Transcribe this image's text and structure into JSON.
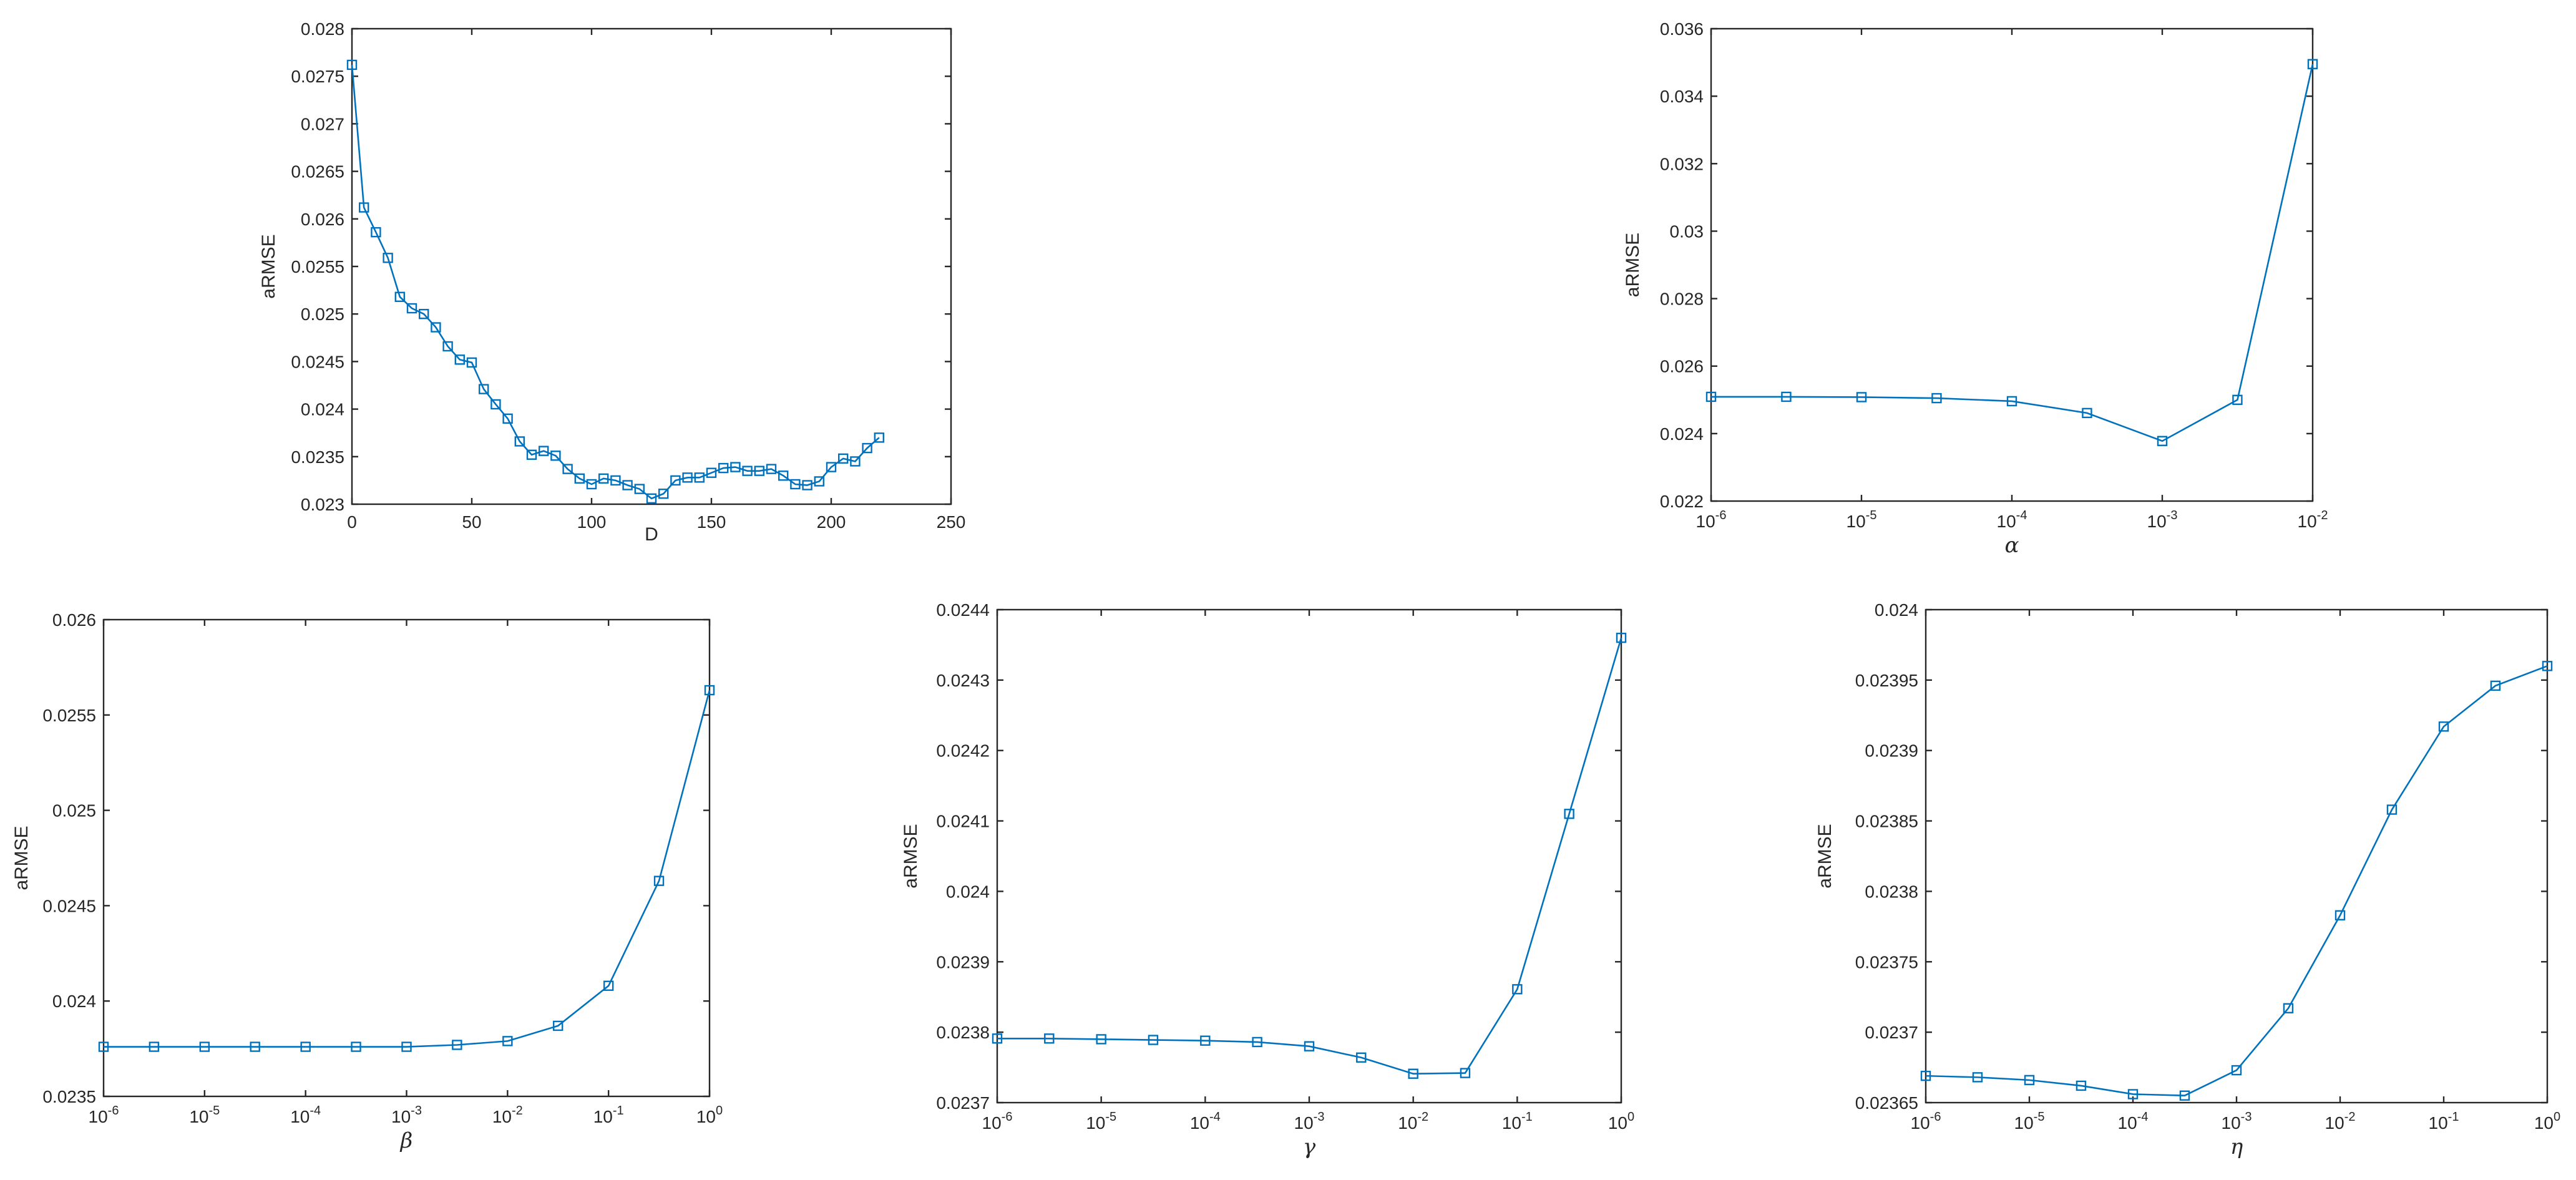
{
  "figure": {
    "line_color": "#0072BD",
    "axis_color": "#262626",
    "marker": "square"
  },
  "chart_data": [
    {
      "id": "d",
      "type": "line",
      "xscale": "linear",
      "xlabel": "D",
      "ylabel": "aRMSE",
      "xlim": [
        0,
        250
      ],
      "ylim": [
        0.023,
        0.028
      ],
      "xticks": [
        0,
        50,
        100,
        150,
        200,
        250
      ],
      "xtick_labels": [
        "0",
        "50",
        "100",
        "150",
        "200",
        "250"
      ],
      "yticks": [
        0.023,
        0.0235,
        0.024,
        0.0245,
        0.025,
        0.0255,
        0.026,
        0.0265,
        0.027,
        0.0275,
        0.028
      ],
      "ytick_labels": [
        "0.023",
        "0.0235",
        "0.024",
        "0.0245",
        "0.025",
        "0.0255",
        "0.026",
        "0.0265",
        "0.027",
        "0.0275",
        "0.028"
      ],
      "series": [
        {
          "x": [
            0,
            5,
            10,
            15,
            20,
            25,
            30,
            35,
            40,
            45,
            50,
            55,
            60,
            65,
            70,
            75,
            80,
            85,
            90,
            95,
            100,
            105,
            110,
            115,
            120,
            125,
            130,
            135,
            140,
            145,
            150,
            155,
            160,
            165,
            170,
            175,
            180,
            185,
            190,
            195,
            200,
            205,
            210,
            215,
            220
          ],
          "y": [
            0.02762,
            0.02612,
            0.02586,
            0.02559,
            0.02518,
            0.02506,
            0.025,
            0.02486,
            0.02466,
            0.02452,
            0.02449,
            0.02421,
            0.02405,
            0.0239,
            0.02366,
            0.02352,
            0.02356,
            0.02351,
            0.02337,
            0.02327,
            0.02321,
            0.02327,
            0.02325,
            0.0232,
            0.02316,
            0.02306,
            0.02311,
            0.02325,
            0.02328,
            0.02328,
            0.02333,
            0.02338,
            0.02339,
            0.02335,
            0.02335,
            0.02337,
            0.0233,
            0.02321,
            0.0232,
            0.02324,
            0.02339,
            0.02348,
            0.02345,
            0.02359,
            0.0237
          ]
        }
      ]
    },
    {
      "id": "alpha",
      "type": "line",
      "xscale": "log",
      "xlabel": "α",
      "ylabel": "aRMSE",
      "xlim": [
        -6,
        -2
      ],
      "ylim": [
        0.022,
        0.036
      ],
      "xticks": [
        -6,
        -5,
        -4,
        -3,
        -2
      ],
      "xtick_base": [
        "10",
        "10",
        "10",
        "10",
        "10"
      ],
      "xtick_exp": [
        "-6",
        "-5",
        "-4",
        "-3",
        "-2"
      ],
      "yticks": [
        0.022,
        0.024,
        0.026,
        0.028,
        0.03,
        0.032,
        0.034,
        0.036
      ],
      "ytick_labels": [
        "0.022",
        "0.024",
        "0.026",
        "0.028",
        "0.03",
        "0.032",
        "0.034",
        "0.036"
      ],
      "series": [
        {
          "x": [
            1e-06,
            3.16e-06,
            1e-05,
            3.16e-05,
            0.0001,
            0.000316,
            0.001,
            0.00316,
            0.01
          ],
          "y": [
            0.02509,
            0.02509,
            0.02508,
            0.02505,
            0.02496,
            0.02461,
            0.02378,
            0.025,
            0.03495
          ]
        }
      ]
    },
    {
      "id": "beta",
      "type": "line",
      "xscale": "log",
      "xlabel": "β",
      "ylabel": "aRMSE",
      "xlim": [
        -6,
        0
      ],
      "ylim": [
        0.0235,
        0.026
      ],
      "xticks": [
        -6,
        -5,
        -4,
        -3,
        -2,
        -1,
        0
      ],
      "xtick_base": [
        "10",
        "10",
        "10",
        "10",
        "10",
        "10",
        "10"
      ],
      "xtick_exp": [
        "-6",
        "-5",
        "-4",
        "-3",
        "-2",
        "-1",
        "0"
      ],
      "yticks": [
        0.0235,
        0.024,
        0.0245,
        0.025,
        0.0255,
        0.026
      ],
      "ytick_labels": [
        "0.0235",
        "0.024",
        "0.0245",
        "0.025",
        "0.0255",
        "0.026"
      ],
      "series": [
        {
          "x": [
            1e-06,
            3.16e-06,
            1e-05,
            3.16e-05,
            0.0001,
            0.000316,
            0.001,
            0.00316,
            0.01,
            0.0316,
            0.1,
            0.316,
            1
          ],
          "y": [
            0.02376,
            0.02376,
            0.02376,
            0.02376,
            0.02376,
            0.02376,
            0.02376,
            0.02377,
            0.02379,
            0.02387,
            0.02408,
            0.02463,
            0.02563
          ]
        }
      ]
    },
    {
      "id": "gamma",
      "type": "line",
      "xscale": "log",
      "xlabel": "γ",
      "ylabel": "aRMSE",
      "xlim": [
        -6,
        0
      ],
      "ylim": [
        0.0237,
        0.0244
      ],
      "xticks": [
        -6,
        -5,
        -4,
        -3,
        -2,
        -1,
        0
      ],
      "xtick_base": [
        "10",
        "10",
        "10",
        "10",
        "10",
        "10",
        "10"
      ],
      "xtick_exp": [
        "-6",
        "-5",
        "-4",
        "-3",
        "-2",
        "-1",
        "0"
      ],
      "yticks": [
        0.0237,
        0.0238,
        0.0239,
        0.024,
        0.0241,
        0.0242,
        0.0243,
        0.0244
      ],
      "ytick_labels": [
        "0.0237",
        "0.0238",
        "0.0239",
        "0.024",
        "0.0241",
        "0.0242",
        "0.0243",
        "0.0244"
      ],
      "series": [
        {
          "x": [
            1e-06,
            3.16e-06,
            1e-05,
            3.16e-05,
            0.0001,
            0.000316,
            0.001,
            0.00316,
            0.01,
            0.0316,
            0.1,
            0.316,
            1
          ],
          "y": [
            0.023791,
            0.023791,
            0.02379,
            0.023789,
            0.023788,
            0.023786,
            0.02378,
            0.023764,
            0.023741,
            0.023742,
            0.023861,
            0.02411,
            0.02436
          ]
        }
      ]
    },
    {
      "id": "eta",
      "type": "line",
      "xscale": "log",
      "xlabel": "η",
      "ylabel": "aRMSE",
      "xlim": [
        -6,
        0
      ],
      "ylim": [
        0.02365,
        0.024
      ],
      "xticks": [
        -6,
        -5,
        -4,
        -3,
        -2,
        -1,
        0
      ],
      "xtick_base": [
        "10",
        "10",
        "10",
        "10",
        "10",
        "10",
        "10"
      ],
      "xtick_exp": [
        "-6",
        "-5",
        "-4",
        "-3",
        "-2",
        "-1",
        "0"
      ],
      "yticks": [
        0.02365,
        0.0237,
        0.02375,
        0.0238,
        0.02385,
        0.0239,
        0.02395,
        0.024
      ],
      "ytick_labels": [
        "0.02365",
        "0.0237",
        "0.02375",
        "0.0238",
        "0.02385",
        "0.0239",
        "0.02395",
        "0.024"
      ],
      "series": [
        {
          "x": [
            1e-06,
            3.16e-06,
            1e-05,
            3.16e-05,
            0.0001,
            0.000316,
            0.001,
            0.00316,
            0.01,
            0.0316,
            0.1,
            0.316,
            1
          ],
          "y": [
            0.023669,
            0.023668,
            0.023666,
            0.023662,
            0.023656,
            0.023655,
            0.023673,
            0.023717,
            0.023783,
            0.023858,
            0.023917,
            0.023946,
            0.02396
          ]
        }
      ]
    }
  ]
}
